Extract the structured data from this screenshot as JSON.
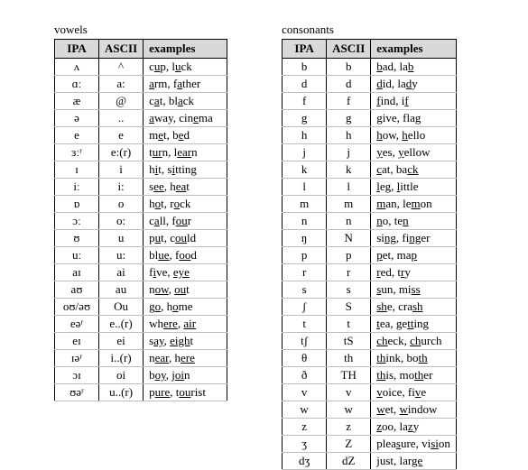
{
  "layout": {
    "background_color": "#ffffff",
    "header_bg": "#d9d9d9",
    "border_color": "#000000",
    "row_border_color": "#bfbfbf",
    "font_family": "Times New Roman",
    "font_size_pt": 10
  },
  "vowels": {
    "title": "vowels",
    "columns": [
      "IPA",
      "ASCII",
      "examples"
    ],
    "rows": [
      {
        "ipa": "ʌ",
        "ascii": "^",
        "ex": [
          [
            "c",
            "u",
            "p"
          ],
          ", ",
          [
            "l",
            "u",
            "ck"
          ]
        ]
      },
      {
        "ipa": "ɑː",
        "ascii": "a:",
        "ex": [
          [
            "",
            "a",
            "rm"
          ],
          ", ",
          [
            "f",
            "a",
            "ther"
          ]
        ]
      },
      {
        "ipa": "æ",
        "ascii": "@",
        "ex": [
          [
            "c",
            "a",
            "t"
          ],
          ", ",
          [
            "bl",
            "a",
            "ck"
          ]
        ]
      },
      {
        "ipa": "ə",
        "ascii": "..",
        "ex": [
          [
            "",
            "a",
            "way"
          ],
          ", ",
          [
            "cin",
            "e",
            "ma"
          ]
        ]
      },
      {
        "ipa": "e",
        "ascii": "e",
        "ex": [
          [
            "m",
            "e",
            "t"
          ],
          ", ",
          [
            "b",
            "e",
            "d"
          ]
        ]
      },
      {
        "ipa": "ɜːʳ",
        "ascii": "e:(r)",
        "ex": [
          [
            "t",
            "ur",
            "n"
          ],
          ", ",
          [
            "l",
            "ear",
            "n"
          ]
        ]
      },
      {
        "ipa": "ɪ",
        "ascii": "i",
        "ex": [
          [
            "h",
            "i",
            "t"
          ],
          ", ",
          [
            "s",
            "i",
            "tting"
          ]
        ]
      },
      {
        "ipa": "iː",
        "ascii": "i:",
        "ex": [
          [
            "s",
            "ee",
            ""
          ],
          ", ",
          [
            "h",
            "ea",
            "t"
          ]
        ]
      },
      {
        "ipa": "ɒ",
        "ascii": "o",
        "ex": [
          [
            "h",
            "o",
            "t"
          ],
          ", ",
          [
            "r",
            "o",
            "ck"
          ]
        ]
      },
      {
        "ipa": "ɔː",
        "ascii": "o:",
        "ex": [
          [
            "c",
            "a",
            "ll"
          ],
          ", ",
          [
            "f",
            "ou",
            "r"
          ]
        ]
      },
      {
        "ipa": "ʊ",
        "ascii": "u",
        "ex": [
          [
            "p",
            "u",
            "t"
          ],
          ", ",
          [
            "c",
            "ou",
            "ld"
          ]
        ]
      },
      {
        "ipa": "uː",
        "ascii": "u:",
        "ex": [
          [
            "bl",
            "ue",
            ""
          ],
          ", ",
          [
            "f",
            "oo",
            "d"
          ]
        ]
      },
      {
        "ipa": "aɪ",
        "ascii": "ai",
        "ex": [
          [
            "f",
            "i",
            "ve"
          ],
          ", ",
          [
            "",
            "eye",
            ""
          ]
        ]
      },
      {
        "ipa": "aʊ",
        "ascii": "au",
        "ex": [
          [
            "n",
            "ow",
            ""
          ],
          ", ",
          [
            "",
            "ou",
            "t"
          ]
        ]
      },
      {
        "ipa": "oʊ/əʊ",
        "ascii": "Ou",
        "ex": [
          [
            "g",
            "o",
            ""
          ],
          ", ",
          [
            "h",
            "o",
            "me"
          ]
        ]
      },
      {
        "ipa": "eəʳ",
        "ascii": "e..(r)",
        "ex": [
          [
            "wh",
            "ere",
            ""
          ],
          ", ",
          [
            "",
            "air",
            ""
          ]
        ]
      },
      {
        "ipa": "eɪ",
        "ascii": "ei",
        "ex": [
          [
            "s",
            "ay",
            ""
          ],
          ", ",
          [
            "",
            "eigh",
            "t"
          ]
        ]
      },
      {
        "ipa": "ɪəʳ",
        "ascii": "i..(r)",
        "ex": [
          [
            "n",
            "ear",
            ""
          ],
          ", ",
          [
            "h",
            "ere",
            ""
          ]
        ]
      },
      {
        "ipa": "ɔɪ",
        "ascii": "oi",
        "ex": [
          [
            "b",
            "oy",
            ""
          ],
          ", ",
          [
            "j",
            "oi",
            "n"
          ]
        ]
      },
      {
        "ipa": "ʊəʳ",
        "ascii": "u..(r)",
        "ex": [
          [
            "p",
            "ure",
            ""
          ],
          ", ",
          [
            "t",
            "ou",
            "rist"
          ]
        ]
      }
    ]
  },
  "consonants": {
    "title": "consonants",
    "columns": [
      "IPA",
      "ASCII",
      "examples"
    ],
    "rows": [
      {
        "ipa": "b",
        "ascii": "b",
        "ex": [
          [
            "",
            "b",
            "ad"
          ],
          ", ",
          [
            "la",
            "b",
            ""
          ]
        ]
      },
      {
        "ipa": "d",
        "ascii": "d",
        "ex": [
          [
            "",
            "d",
            "id"
          ],
          ", ",
          [
            "la",
            "d",
            "y"
          ]
        ]
      },
      {
        "ipa": "f",
        "ascii": "f",
        "ex": [
          [
            "",
            "f",
            "ind"
          ],
          ", ",
          [
            "i",
            "f",
            ""
          ]
        ]
      },
      {
        "ipa": "g",
        "ascii": "g",
        "ex": [
          [
            "",
            "g",
            "ive"
          ],
          ", ",
          [
            "fla",
            "g",
            ""
          ]
        ]
      },
      {
        "ipa": "h",
        "ascii": "h",
        "ex": [
          [
            "",
            "h",
            "ow"
          ],
          ", ",
          [
            "",
            "h",
            "ello"
          ]
        ]
      },
      {
        "ipa": "j",
        "ascii": "j",
        "ex": [
          [
            "",
            "y",
            "es"
          ],
          ", ",
          [
            "",
            "y",
            "ellow"
          ]
        ]
      },
      {
        "ipa": "k",
        "ascii": "k",
        "ex": [
          [
            "",
            "c",
            "at"
          ],
          ", ",
          [
            "ba",
            "ck",
            ""
          ]
        ]
      },
      {
        "ipa": "l",
        "ascii": "l",
        "ex": [
          [
            "",
            "l",
            "eg"
          ],
          ", ",
          [
            "",
            "l",
            "ittle"
          ]
        ]
      },
      {
        "ipa": "m",
        "ascii": "m",
        "ex": [
          [
            "",
            "m",
            "an"
          ],
          ", ",
          [
            "le",
            "m",
            "on"
          ]
        ]
      },
      {
        "ipa": "n",
        "ascii": "n",
        "ex": [
          [
            "",
            "n",
            "o"
          ],
          ", ",
          [
            "te",
            "n",
            ""
          ]
        ]
      },
      {
        "ipa": "ŋ",
        "ascii": "N",
        "ex": [
          [
            "si",
            "ng",
            ""
          ],
          ", ",
          [
            "fi",
            "ng",
            "er"
          ]
        ]
      },
      {
        "ipa": "p",
        "ascii": "p",
        "ex": [
          [
            "",
            "p",
            "et"
          ],
          ", ",
          [
            "ma",
            "p",
            ""
          ]
        ]
      },
      {
        "ipa": "r",
        "ascii": "r",
        "ex": [
          [
            "",
            "r",
            "ed"
          ],
          ", ",
          [
            "t",
            "r",
            "y"
          ]
        ]
      },
      {
        "ipa": "s",
        "ascii": "s",
        "ex": [
          [
            "",
            "s",
            "un"
          ],
          ", ",
          [
            "mi",
            "ss",
            ""
          ]
        ]
      },
      {
        "ipa": "ʃ",
        "ascii": "S",
        "ex": [
          [
            "",
            "sh",
            "e"
          ],
          ", ",
          [
            "cra",
            "sh",
            ""
          ]
        ]
      },
      {
        "ipa": "t",
        "ascii": "t",
        "ex": [
          [
            "",
            "t",
            "ea"
          ],
          ", ",
          [
            "ge",
            "tt",
            "ing"
          ]
        ]
      },
      {
        "ipa": "tʃ",
        "ascii": "tS",
        "ex": [
          [
            "",
            "ch",
            "eck"
          ],
          ", ",
          [
            "",
            "ch",
            "urch"
          ]
        ]
      },
      {
        "ipa": "θ",
        "ascii": "th",
        "ex": [
          [
            "",
            "th",
            "ink"
          ],
          ", ",
          [
            "bo",
            "th",
            ""
          ]
        ]
      },
      {
        "ipa": "ð",
        "ascii": "TH",
        "ex": [
          [
            "",
            "th",
            "is"
          ],
          ", ",
          [
            "mo",
            "th",
            "er"
          ]
        ]
      },
      {
        "ipa": "v",
        "ascii": "v",
        "ex": [
          [
            "",
            "v",
            "oice"
          ],
          ", ",
          [
            "fi",
            "v",
            "e"
          ]
        ]
      },
      {
        "ipa": "w",
        "ascii": "w",
        "ex": [
          [
            "",
            "w",
            "et"
          ],
          ", ",
          [
            "",
            "w",
            "indow"
          ]
        ]
      },
      {
        "ipa": "z",
        "ascii": "z",
        "ex": [
          [
            "",
            "z",
            "oo"
          ],
          ", ",
          [
            "la",
            "z",
            "y"
          ]
        ]
      },
      {
        "ipa": "ʒ",
        "ascii": "Z",
        "ex": [
          [
            "plea",
            "s",
            "ure"
          ],
          ", ",
          [
            "vi",
            "si",
            "on"
          ]
        ]
      },
      {
        "ipa": "dʒ",
        "ascii": "dZ",
        "ex": [
          [
            "",
            "j",
            "ust"
          ],
          ", ",
          [
            "lar",
            "ge",
            ""
          ]
        ]
      }
    ]
  }
}
